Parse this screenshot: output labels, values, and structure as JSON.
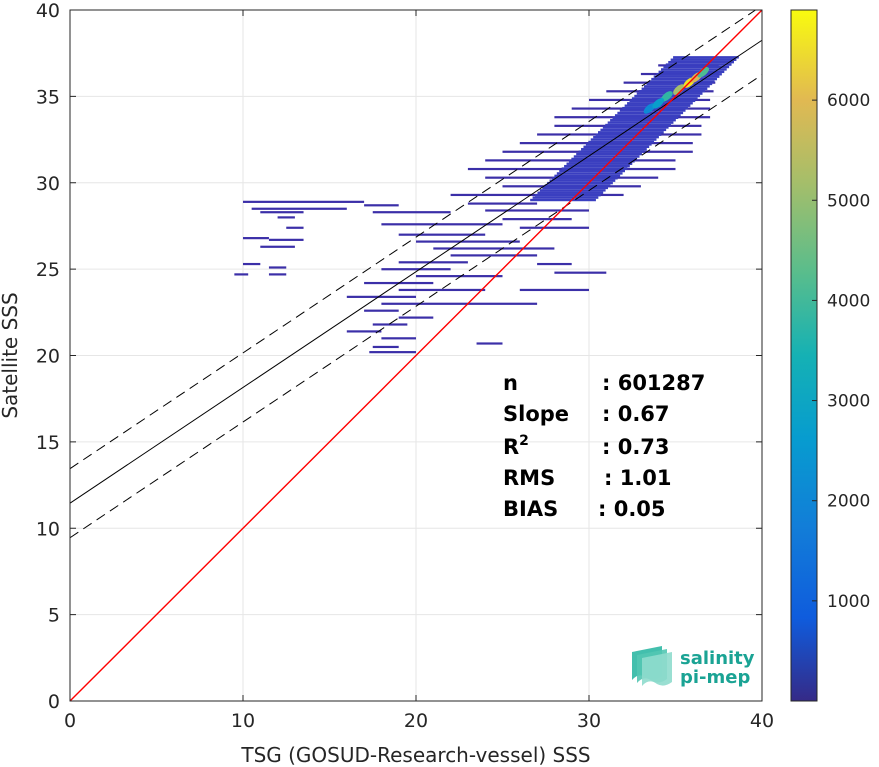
{
  "chart_data": {
    "type": "heatmap",
    "xlabel": "TSG (GOSUD-Research-vessel) SSS",
    "ylabel": "Satellite SSS",
    "xlim": [
      0,
      40
    ],
    "ylim": [
      0,
      40
    ],
    "x_ticks": [
      0,
      10,
      20,
      30,
      40
    ],
    "y_ticks": [
      0,
      5,
      10,
      15,
      20,
      25,
      30,
      35,
      40
    ],
    "grid": true,
    "colorbar": {
      "ticks": [
        1000,
        2000,
        3000,
        4000,
        5000,
        6000
      ],
      "range": [
        0,
        6900
      ],
      "colormap": "parula"
    },
    "lines": {
      "one_to_one": {
        "slope": 1,
        "intercept": 0,
        "color": "#ff0000"
      },
      "fit": {
        "slope": 0.67,
        "intercept": 11.45,
        "color": "#000000"
      },
      "fit_upper": {
        "slope": 0.67,
        "intercept": 13.45,
        "color": "#000000",
        "style": "dashed"
      },
      "fit_lower": {
        "slope": 0.67,
        "intercept": 9.45,
        "color": "#000000",
        "style": "dashed"
      }
    },
    "density_segments": [
      {
        "x0": 10,
        "x1": 17,
        "y": 28.9
      },
      {
        "x0": 10.5,
        "x1": 16,
        "y": 28.5
      },
      {
        "x0": 11,
        "x1": 13.5,
        "y": 28.3
      },
      {
        "x0": 12,
        "x1": 13,
        "y": 28.0
      },
      {
        "x0": 12.5,
        "x1": 13.5,
        "y": 27.4
      },
      {
        "x0": 10,
        "x1": 11.5,
        "y": 26.8
      },
      {
        "x0": 11.5,
        "x1": 13.5,
        "y": 26.7
      },
      {
        "x0": 11,
        "x1": 13,
        "y": 26.3
      },
      {
        "x0": 10,
        "x1": 11,
        "y": 25.3
      },
      {
        "x0": 11.5,
        "x1": 12.5,
        "y": 25.1
      },
      {
        "x0": 9.5,
        "x1": 10.3,
        "y": 24.7
      },
      {
        "x0": 11.5,
        "x1": 12.5,
        "y": 24.7
      },
      {
        "x0": 17,
        "x1": 19,
        "y": 28.7
      },
      {
        "x0": 17.5,
        "x1": 22,
        "y": 28.3
      },
      {
        "x0": 18,
        "x1": 25,
        "y": 27.6
      },
      {
        "x0": 19,
        "x1": 24,
        "y": 27.0
      },
      {
        "x0": 20,
        "x1": 26,
        "y": 26.6
      },
      {
        "x0": 21,
        "x1": 28,
        "y": 26.2
      },
      {
        "x0": 22,
        "x1": 27,
        "y": 25.8
      },
      {
        "x0": 19,
        "x1": 23,
        "y": 25.4
      },
      {
        "x0": 18,
        "x1": 22,
        "y": 25.0
      },
      {
        "x0": 20,
        "x1": 25,
        "y": 24.6
      },
      {
        "x0": 17,
        "x1": 21,
        "y": 24.2
      },
      {
        "x0": 19,
        "x1": 24,
        "y": 23.8
      },
      {
        "x0": 16,
        "x1": 20,
        "y": 23.4
      },
      {
        "x0": 18,
        "x1": 27,
        "y": 23.0
      },
      {
        "x0": 17,
        "x1": 19,
        "y": 22.6
      },
      {
        "x0": 19,
        "x1": 21,
        "y": 22.2
      },
      {
        "x0": 17.5,
        "x1": 19.5,
        "y": 21.8
      },
      {
        "x0": 16,
        "x1": 18,
        "y": 21.4
      },
      {
        "x0": 18,
        "x1": 20,
        "y": 21.0
      },
      {
        "x0": 17.5,
        "x1": 19,
        "y": 20.5
      },
      {
        "x0": 17.3,
        "x1": 20,
        "y": 20.2
      },
      {
        "x0": 23.5,
        "x1": 25,
        "y": 20.7
      },
      {
        "x0": 26,
        "x1": 30,
        "y": 23.8
      },
      {
        "x0": 28,
        "x1": 31,
        "y": 24.8
      },
      {
        "x0": 27,
        "x1": 29,
        "y": 25.3
      },
      {
        "x0": 26,
        "x1": 30,
        "y": 27.4
      },
      {
        "x0": 25,
        "x1": 29,
        "y": 27.9
      },
      {
        "x0": 24,
        "x1": 30,
        "y": 28.4
      },
      {
        "x0": 23,
        "x1": 27,
        "y": 28.8
      },
      {
        "x0": 22,
        "x1": 32,
        "y": 29.3
      },
      {
        "x0": 25,
        "x1": 33,
        "y": 29.8
      },
      {
        "x0": 24,
        "x1": 34,
        "y": 30.3
      },
      {
        "x0": 23,
        "x1": 35,
        "y": 30.8
      },
      {
        "x0": 24,
        "x1": 35,
        "y": 31.3
      },
      {
        "x0": 25,
        "x1": 36,
        "y": 31.8
      },
      {
        "x0": 26,
        "x1": 36,
        "y": 32.3
      },
      {
        "x0": 27,
        "x1": 36.5,
        "y": 32.8
      },
      {
        "x0": 28,
        "x1": 36.5,
        "y": 33.3
      },
      {
        "x0": 28,
        "x1": 37,
        "y": 33.8
      },
      {
        "x0": 29,
        "x1": 37,
        "y": 34.3
      },
      {
        "x0": 30,
        "x1": 37,
        "y": 34.8
      },
      {
        "x0": 31,
        "x1": 37.2,
        "y": 35.3
      },
      {
        "x0": 32,
        "x1": 37.3,
        "y": 35.8
      },
      {
        "x0": 33,
        "x1": 37.5,
        "y": 36.3
      },
      {
        "x0": 34,
        "x1": 37.5,
        "y": 36.8
      }
    ],
    "density_peaks": [
      {
        "x": 33.5,
        "y": 34.3,
        "level": 0.3
      },
      {
        "x": 34.5,
        "y": 35.0,
        "level": 0.55
      },
      {
        "x": 35.2,
        "y": 35.4,
        "level": 0.75
      },
      {
        "x": 35.8,
        "y": 35.8,
        "level": 0.95
      },
      {
        "x": 36.2,
        "y": 36.1,
        "level": 0.85
      },
      {
        "x": 36.6,
        "y": 36.4,
        "level": 0.6
      },
      {
        "x": 34.0,
        "y": 34.6,
        "level": 0.4
      }
    ]
  },
  "stats": [
    {
      "label": "n",
      "superscript": "",
      "value": ": 601287"
    },
    {
      "label": "Slope",
      "superscript": "",
      "value": ": 0.67"
    },
    {
      "label": "R",
      "superscript": "2",
      "value": ": 0.73"
    },
    {
      "label": "RMS",
      "superscript": "",
      "value": ": 1.01"
    },
    {
      "label": "BIAS",
      "superscript": "",
      "value": ": 0.05"
    }
  ],
  "logo": {
    "line1": "salinity",
    "line2": "pi-mep",
    "color": "#1aa394"
  }
}
